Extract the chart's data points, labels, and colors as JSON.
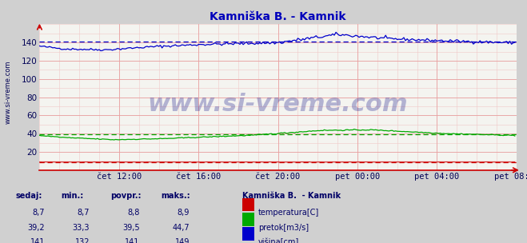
{
  "title": "Kamniška B. - Kamnik",
  "bg_color": "#d0d0d0",
  "plot_bg_color": "#f4f4f0",
  "grid_color_major": "#e8a0a0",
  "grid_color_minor": "#f0c8c8",
  "x_labels": [
    "čet 12:00",
    "čet 16:00",
    "čet 20:00",
    "pet 00:00",
    "pet 04:00",
    "pet 08:00"
  ],
  "x_ticks": [
    48,
    96,
    144,
    192,
    240,
    288
  ],
  "x_total": 288,
  "y_min": 0,
  "y_max": 160,
  "y_ticks": [
    20,
    40,
    60,
    80,
    100,
    120,
    140
  ],
  "title_color": "#0000bb",
  "title_fontsize": 10,
  "tick_color": "#000055",
  "tick_fontsize": 7.5,
  "watermark": "www.si-vreme.com",
  "watermark_color": "#1a1a8c",
  "watermark_alpha": 0.3,
  "watermark_fontsize": 22,
  "sidebar_text": "www.si-vreme.com",
  "sidebar_color": "#000055",
  "sidebar_fontsize": 6,
  "line_temp_color": "#cc0000",
  "line_flow_color": "#00aa00",
  "line_height_color": "#0000cc",
  "dashed_flow_avg": 39.5,
  "dashed_height_avg": 141,
  "dashed_temp_avg": 8.8,
  "table_headers": [
    "sedaj:",
    "min.:",
    "povpr.:",
    "maks.:"
  ],
  "table_data": [
    [
      "8,7",
      "8,7",
      "8,8",
      "8,9"
    ],
    [
      "39,2",
      "33,3",
      "39,5",
      "44,7"
    ],
    [
      "141",
      "132",
      "141",
      "149"
    ]
  ],
  "legend_title": "Kamniška B.  - Kamnik",
  "legend_items": [
    "temperatura[C]",
    "pretok[m3/s]",
    "višina[cm]"
  ],
  "legend_colors": [
    "#cc0000",
    "#00aa00",
    "#0000cc"
  ],
  "table_color": "#000066",
  "header_color": "#000066"
}
